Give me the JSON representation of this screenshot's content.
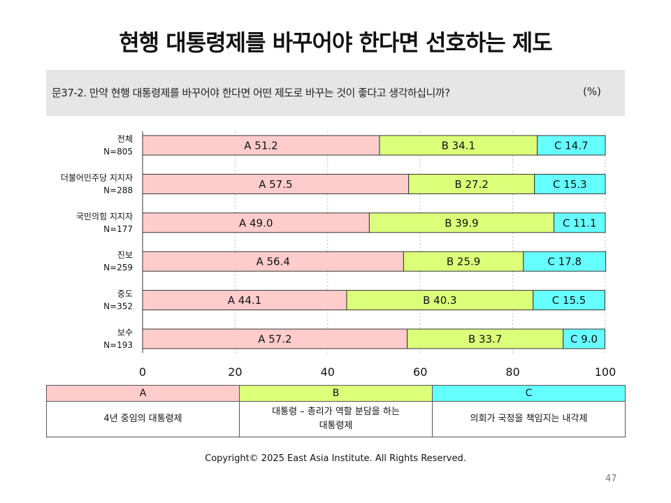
{
  "title": "현행 대통령제를 바꾸어야 한다면 선호하는 제도",
  "question": "문37-2. 만약 현행 대통령제를 바꾸어야 한다면 어떤 제도로 바꾸는 것이 좋다고 생각하십니까?",
  "unit": "(%)",
  "colors": {
    "A": "#ffcccc",
    "B": "#dcff7a",
    "C": "#66ffff"
  },
  "legend": {
    "headers": [
      "A",
      "B",
      "C"
    ],
    "descriptions": [
      "4년 중임의 대통령제",
      "대통령 – 총리가 역할 분담을 하는\n대통령제",
      "의회가 국정을 책임지는 내각제"
    ]
  },
  "footer": "Copyright© 2025 East Asia Institute. All Rights Reserved.",
  "page_number": "47",
  "chart_data": {
    "type": "bar",
    "orientation": "horizontal",
    "stacked": true,
    "categories": [
      {
        "label": "전체",
        "n": "N=805"
      },
      {
        "label": "더불어민주당  지지자",
        "n": "N=288"
      },
      {
        "label": "국민의힘  지지자",
        "n": "N=177"
      },
      {
        "label": "진보",
        "n": "N=259"
      },
      {
        "label": "중도",
        "n": "N=352"
      },
      {
        "label": "보수",
        "n": "N=193"
      }
    ],
    "series": [
      {
        "name": "A",
        "values": [
          51.2,
          57.5,
          49.0,
          56.4,
          44.1,
          57.2
        ],
        "labels": [
          "A 51.2",
          "A 57.5",
          "A 49.0",
          "A 56.4",
          "A 44.1",
          "A 57.2"
        ]
      },
      {
        "name": "B",
        "values": [
          34.1,
          27.2,
          39.9,
          25.9,
          40.3,
          33.7
        ],
        "labels": [
          "B 34.1",
          "B 27.2",
          "B 39.9",
          "B 25.9",
          "B 40.3",
          "B 33.7"
        ]
      },
      {
        "name": "C",
        "values": [
          14.7,
          15.3,
          11.1,
          17.8,
          15.5,
          9.0
        ],
        "labels": [
          "C 14.7",
          "C 15.3",
          "C 11.1",
          "C 17.8",
          "C 15.5",
          "C 9.0"
        ]
      }
    ],
    "xlim": [
      0,
      100
    ],
    "xticks": [
      "0",
      "20",
      "40",
      "60",
      "80",
      "100"
    ],
    "grid": "vertical dotted"
  }
}
